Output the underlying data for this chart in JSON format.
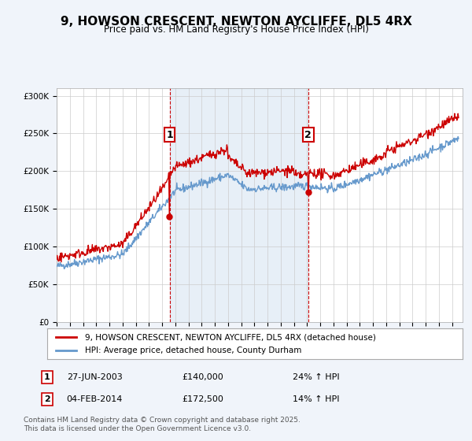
{
  "title": "9, HOWSON CRESCENT, NEWTON AYCLIFFE, DL5 4RX",
  "subtitle": "Price paid vs. HM Land Registry's House Price Index (HPI)",
  "legend_line1": "9, HOWSON CRESCENT, NEWTON AYCLIFFE, DL5 4RX (detached house)",
  "legend_line2": "HPI: Average price, detached house, County Durham",
  "sale1_date": "27-JUN-2003",
  "sale1_price": 140000,
  "sale1_hpi": "24% ↑ HPI",
  "sale1_label": "1",
  "sale2_date": "04-FEB-2014",
  "sale2_price": 172500,
  "sale2_hpi": "14% ↑ HPI",
  "sale2_label": "2",
  "footnote": "Contains HM Land Registry data © Crown copyright and database right 2025.\nThis data is licensed under the Open Government Licence v3.0.",
  "bg_color": "#f0f4fa",
  "plot_bg": "#ffffff",
  "red_color": "#cc0000",
  "blue_color": "#6699cc",
  "dashed_color": "#cc0000",
  "ylim": [
    0,
    310000
  ],
  "yticks": [
    0,
    50000,
    100000,
    150000,
    200000,
    250000,
    300000
  ]
}
